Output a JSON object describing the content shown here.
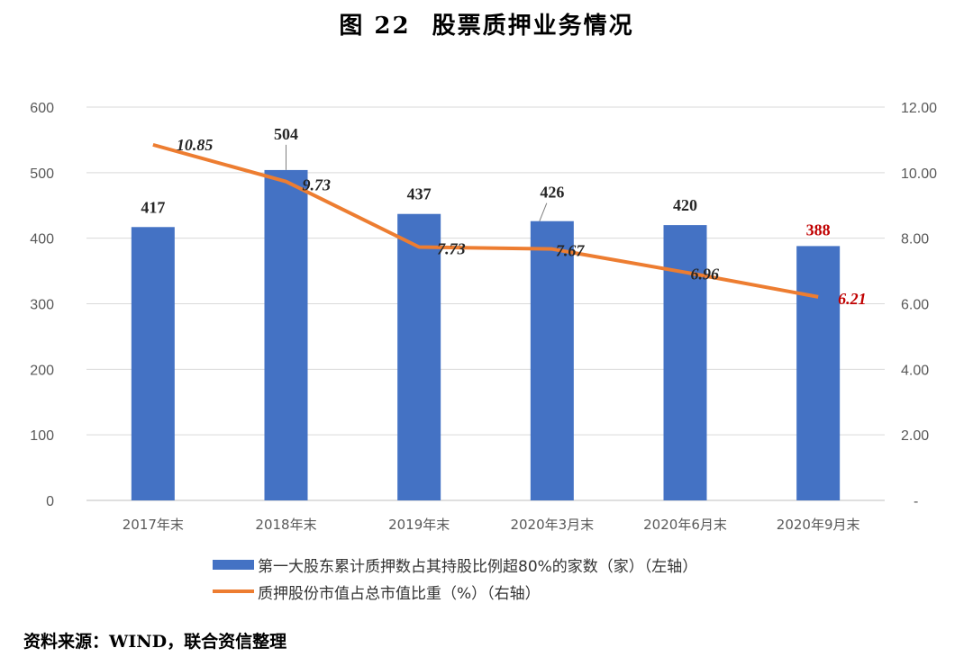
{
  "title": {
    "number": "图 22",
    "text": "股票质押业务情况"
  },
  "chart_data": {
    "type": "bar+line",
    "categories": [
      "2017年末",
      "2018年末",
      "2019年末",
      "2020年3月末",
      "2020年6月末",
      "2020年9月末"
    ],
    "series": [
      {
        "name": "第一大股东累计质押数占其持股比例超80%的家数（家）（左轴）",
        "type": "bar",
        "axis": "left",
        "values": [
          417,
          504,
          437,
          426,
          420,
          388
        ],
        "labels": [
          "417",
          "504",
          "437",
          "426",
          "420",
          "388"
        ]
      },
      {
        "name": "质押股份市值占总市值比重（%）（右轴）",
        "type": "line",
        "axis": "right",
        "values": [
          10.85,
          9.73,
          7.73,
          7.67,
          6.96,
          6.21
        ],
        "labels": [
          "10.85",
          "9.73",
          "7.73",
          "7.67",
          "6.96",
          "6.21"
        ]
      }
    ],
    "y_left": {
      "min": 0,
      "max": 600,
      "ticks": [
        "0",
        "100",
        "200",
        "300",
        "400",
        "500",
        "600"
      ]
    },
    "y_right": {
      "min": 0,
      "max": 12,
      "ticks": [
        "-",
        "2.00",
        "4.00",
        "6.00",
        "8.00",
        "10.00",
        "12.00"
      ]
    },
    "grid": true,
    "legend_position": "bottom",
    "colors": {
      "bar": "#4472C4",
      "line": "#ED7D31",
      "grid": "#D9D9D9",
      "highlight": "#C00000"
    }
  },
  "source": "资料来源：WIND，联合资信整理"
}
